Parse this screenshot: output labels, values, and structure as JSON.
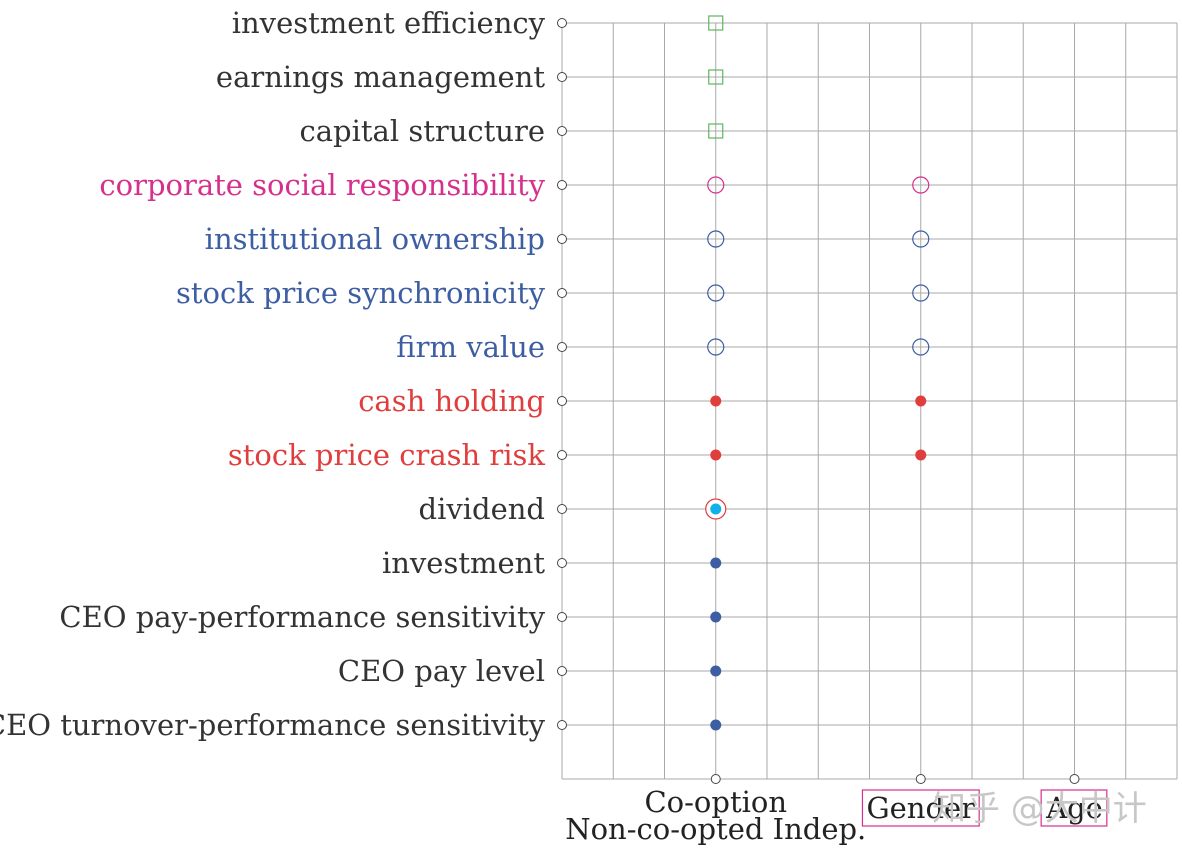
{
  "chart_data": {
    "type": "scatter",
    "x_categories": [
      {
        "lines": [
          "Co-option",
          "Non-co-opted Indep."
        ],
        "x": 3,
        "boxed": false,
        "color": "#222222"
      },
      {
        "lines": [
          "Gender"
        ],
        "x": 7,
        "boxed": true,
        "color": "#d62f8c"
      },
      {
        "lines": [
          "Age"
        ],
        "x": 10,
        "boxed": true,
        "color": "#d62f8c"
      }
    ],
    "x_range": [
      0,
      12
    ],
    "grid": true,
    "rows": [
      {
        "label": "investment efficiency",
        "color": "#333333"
      },
      {
        "label": "earnings management",
        "color": "#333333"
      },
      {
        "label": "capital structure",
        "color": "#333333"
      },
      {
        "label": "corporate social responsibility",
        "color": "#d62f8c"
      },
      {
        "label": "institutional ownership",
        "color": "#3d5ea3"
      },
      {
        "label": "stock price synchronicity",
        "color": "#3d5ea3"
      },
      {
        "label": "firm value",
        "color": "#3d5ea3"
      },
      {
        "label": "cash holding",
        "color": "#e03d3d"
      },
      {
        "label": "stock price crash risk",
        "color": "#e03d3d"
      },
      {
        "label": "dividend",
        "color": "#333333"
      },
      {
        "label": "investment",
        "color": "#333333"
      },
      {
        "label": "CEO pay-performance sensitivity",
        "color": "#333333"
      },
      {
        "label": "CEO pay level",
        "color": "#333333"
      },
      {
        "label": "CEO turnover-performance sensitivity",
        "color": "#333333"
      }
    ],
    "markers": [
      {
        "row": 0,
        "x": 3,
        "shape": "square-open",
        "color": "#5cb85c"
      },
      {
        "row": 1,
        "x": 3,
        "shape": "square-open",
        "color": "#5cb85c"
      },
      {
        "row": 2,
        "x": 3,
        "shape": "square-open",
        "color": "#5cb85c"
      },
      {
        "row": 3,
        "x": 3,
        "shape": "circle-open",
        "color": "#d62f8c"
      },
      {
        "row": 3,
        "x": 7,
        "shape": "circle-open",
        "color": "#d62f8c"
      },
      {
        "row": 4,
        "x": 3,
        "shape": "circle-open",
        "color": "#3d5ea3"
      },
      {
        "row": 4,
        "x": 7,
        "shape": "circle-open",
        "color": "#3d5ea3"
      },
      {
        "row": 5,
        "x": 3,
        "shape": "circle-open",
        "color": "#3d5ea3"
      },
      {
        "row": 5,
        "x": 7,
        "shape": "circle-open",
        "color": "#3d5ea3"
      },
      {
        "row": 6,
        "x": 3,
        "shape": "circle-open",
        "color": "#3d5ea3"
      },
      {
        "row": 6,
        "x": 7,
        "shape": "circle-open",
        "color": "#3d5ea3"
      },
      {
        "row": 7,
        "x": 3,
        "shape": "dot",
        "color": "#e03d3d"
      },
      {
        "row": 7,
        "x": 7,
        "shape": "dot",
        "color": "#e03d3d"
      },
      {
        "row": 8,
        "x": 3,
        "shape": "dot",
        "color": "#e03d3d"
      },
      {
        "row": 8,
        "x": 7,
        "shape": "dot",
        "color": "#e03d3d"
      },
      {
        "row": 9,
        "x": 3,
        "shape": "ring-dot",
        "color": "#12b0e8",
        "ring_color": "#e03d3d"
      },
      {
        "row": 10,
        "x": 3,
        "shape": "dot",
        "color": "#3d5ea3"
      },
      {
        "row": 11,
        "x": 3,
        "shape": "dot",
        "color": "#3d5ea3"
      },
      {
        "row": 12,
        "x": 3,
        "shape": "dot",
        "color": "#3d5ea3"
      },
      {
        "row": 13,
        "x": 3,
        "shape": "dot",
        "color": "#3d5ea3"
      }
    ]
  },
  "watermark": "知乎 @大中计"
}
